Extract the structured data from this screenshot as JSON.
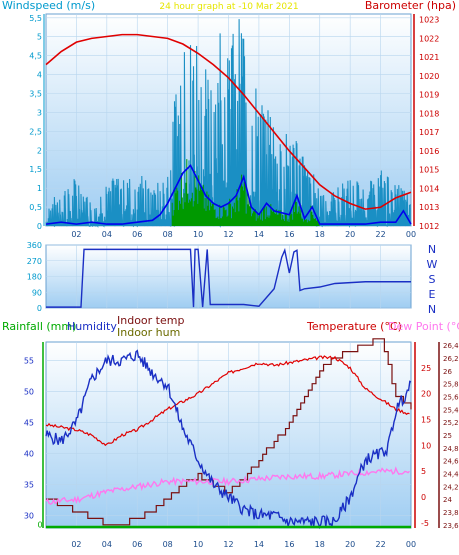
{
  "colors": {
    "windspeed": "#1a8fc4",
    "wind_avg": "#0000ee",
    "gust_green": "#009900",
    "baro": "#e00000",
    "bearing": "#1a2fc4",
    "rain": "#00aa00",
    "humidity": "#1a2fc4",
    "indoor_temp": "#7a1010",
    "indoor_hum": "#6b6b00",
    "temperature": "#e00000",
    "dew": "#ff77ee",
    "axis_cyan": "#009acd",
    "axis_red": "#cc0000"
  },
  "chart_data": [
    {
      "id": "wind-baro",
      "type": "line",
      "title": "24 hour graph at   -10 Mar 2021",
      "left_axis_label": "Windspeed (m/s)",
      "right_axis_label": "Barometer (hpa)",
      "x_ticks": [
        "02",
        "04",
        "06",
        "08",
        "10",
        "12",
        "14",
        "16",
        "18",
        "20",
        "22",
        "00"
      ],
      "y_left_ticks": [
        "0",
        "0,5",
        "1",
        "1,5",
        "2",
        "2,5",
        "3",
        "3,5",
        "4",
        "4,5",
        "5",
        "5,5"
      ],
      "y_right_ticks": [
        "1012",
        "1013",
        "1014",
        "1015",
        "1016",
        "1017",
        "1018",
        "1019",
        "1020",
        "1021",
        "1022",
        "1023"
      ],
      "ylim_left": [
        0,
        5.6
      ],
      "ylim_right": [
        1012,
        1023.3
      ],
      "barometer": {
        "hours": [
          0,
          1,
          2,
          3,
          4,
          5,
          6,
          7,
          8,
          9,
          10,
          11,
          12,
          13,
          14,
          15,
          16,
          17,
          18,
          19,
          20,
          21,
          22,
          23,
          24
        ],
        "values": [
          1020.6,
          1021.3,
          1021.8,
          1022.0,
          1022.1,
          1022.2,
          1022.2,
          1022.1,
          1022.0,
          1021.7,
          1021.2,
          1020.6,
          1019.9,
          1019.0,
          1018.0,
          1017.0,
          1016.0,
          1015.1,
          1014.2,
          1013.6,
          1013.2,
          1012.9,
          1013.0,
          1013.5,
          1013.8
        ]
      },
      "wind_avg": {
        "hours": [
          0,
          1,
          2,
          3,
          4,
          5,
          6,
          7,
          7.5,
          8,
          8.5,
          9,
          9.5,
          10,
          10.5,
          11,
          11.5,
          12,
          12.5,
          13,
          13.5,
          14,
          14.5,
          15,
          16,
          16.5,
          17,
          17.5,
          18,
          19,
          20,
          21,
          22,
          23,
          23.5,
          24
        ],
        "values": [
          0.05,
          0.1,
          0.05,
          0.1,
          0.05,
          0.05,
          0.1,
          0.15,
          0.3,
          0.6,
          1.0,
          1.4,
          1.6,
          1.2,
          0.8,
          0.6,
          0.5,
          0.6,
          0.8,
          1.3,
          0.5,
          0.3,
          0.6,
          0.4,
          0.3,
          0.8,
          0.2,
          0.5,
          0.05,
          0.05,
          0.05,
          0.05,
          0.1,
          0.1,
          0.4,
          0.05
        ]
      },
      "wind_gust_envelope": {
        "hours": [
          0,
          1,
          2,
          3,
          4,
          5,
          6,
          7,
          8,
          8.5,
          9,
          9.5,
          10,
          10.5,
          11,
          11.5,
          12,
          12.5,
          13,
          13.5,
          14,
          15,
          16,
          17,
          18,
          19,
          20,
          21,
          22,
          23,
          24
        ],
        "values": [
          0.5,
          1.0,
          1.3,
          0.6,
          1.1,
          1.5,
          1.5,
          1.0,
          1.5,
          3.5,
          4.5,
          5.5,
          5.4,
          4.5,
          4.2,
          5.5,
          5.0,
          5.5,
          5.5,
          4.0,
          3.5,
          2.8,
          2.5,
          2.0,
          1.0,
          1.0,
          1.3,
          1.1,
          1.5,
          1.3,
          0.8
        ]
      }
    },
    {
      "id": "wind-direction",
      "type": "line",
      "right_axis_label_letters": [
        "N",
        "W",
        "S",
        "E",
        "N"
      ],
      "x_ticks": [],
      "y_ticks": [
        "0",
        "90",
        "180",
        "270",
        "360"
      ],
      "ylim": [
        0,
        360
      ],
      "bearing": {
        "hours": [
          0,
          2,
          2.3,
          2.5,
          8,
          9.5,
          9.7,
          9.8,
          10.0,
          10.3,
          10.6,
          10.8,
          11,
          13,
          14,
          14.5,
          15,
          15.5,
          15.7,
          16,
          16.3,
          16.5,
          16.7,
          17,
          18,
          19,
          20,
          21,
          22,
          24
        ],
        "values": [
          5,
          5,
          5,
          335,
          335,
          335,
          5,
          335,
          335,
          5,
          335,
          20,
          20,
          20,
          10,
          60,
          110,
          290,
          330,
          200,
          320,
          330,
          100,
          110,
          120,
          140,
          145,
          150,
          150,
          150
        ]
      }
    },
    {
      "id": "temp-hum-rain",
      "type": "line",
      "labels": {
        "rainfall": "Rainfall (mm)",
        "humidity": "Humidity",
        "indoor_temp": "Indoor temp",
        "indoor_hum": "Indoor hum",
        "temperature": "Temperature (°C)",
        "dew": "Dew Point (°C)"
      },
      "x_ticks": [
        "02",
        "04",
        "06",
        "08",
        "10",
        "12",
        "14",
        "16",
        "18",
        "20",
        "22",
        "00"
      ],
      "rain_ticks": [
        "0"
      ],
      "humidity_ticks": [
        "30",
        "35",
        "40",
        "45",
        "50",
        "55"
      ],
      "indoor_temp_ticks": [
        "23,6",
        "23,8",
        "24",
        "24,2",
        "24,4",
        "24,6",
        "24,8",
        "25",
        "25,2",
        "25,4",
        "25,6",
        "25,8",
        "26",
        "26,2",
        "26,4"
      ],
      "temperature_ticks": [
        "-5",
        "0",
        "5",
        "10",
        "15",
        "20",
        "25"
      ],
      "ylim_humidity": [
        28,
        58
      ],
      "ylim_temperature": [
        -6,
        30
      ],
      "ylim_indoor_temp": [
        23.55,
        26.45
      ],
      "temperature": {
        "hours": [
          0,
          1,
          2,
          3,
          4,
          5,
          6,
          7,
          8,
          9,
          10,
          11,
          12,
          13,
          14,
          15,
          16,
          17,
          18,
          19,
          20,
          21,
          22,
          23,
          24
        ],
        "values": [
          14,
          13.5,
          13,
          12,
          10,
          12,
          13,
          15,
          17,
          18.5,
          20,
          22,
          24,
          25,
          26,
          25.5,
          26,
          26.5,
          27,
          27,
          25,
          21,
          19,
          17,
          16
        ]
      },
      "dew": {
        "hours": [
          0,
          2,
          4,
          6,
          8,
          10,
          12,
          14,
          16,
          18,
          20,
          22,
          24
        ],
        "values": [
          -1,
          -0.5,
          1,
          2,
          3,
          3,
          3,
          3.5,
          4,
          4,
          4.5,
          5,
          5
        ]
      },
      "humidity": {
        "hours": [
          0,
          1,
          2,
          3,
          4,
          5,
          6,
          7,
          8,
          9,
          10,
          11,
          12,
          13,
          14,
          15,
          16,
          17,
          18,
          19,
          20,
          21,
          22,
          22.5,
          23,
          24
        ],
        "values": [
          43,
          42,
          45,
          52,
          55,
          55,
          56,
          53,
          51,
          44,
          39,
          35,
          33,
          31,
          30,
          30,
          29,
          29,
          29,
          29,
          33,
          39,
          40,
          41,
          47,
          51
        ]
      },
      "indoor_temp": {
        "hours": [
          0,
          1,
          2,
          3,
          4,
          5,
          6,
          7,
          8,
          9,
          10,
          11,
          12,
          13,
          14,
          15,
          16,
          17,
          18,
          19,
          20,
          21,
          22,
          23,
          24
        ],
        "values": [
          24.0,
          23.9,
          23.8,
          23.7,
          23.6,
          23.6,
          23.7,
          23.8,
          24.0,
          24.2,
          24.4,
          24.2,
          24.1,
          24.3,
          24.6,
          24.9,
          25.2,
          25.6,
          26.0,
          26.2,
          26.3,
          26.4,
          26.5,
          25.6,
          25.4
        ]
      },
      "rain": {
        "hours": [
          0,
          24
        ],
        "values": [
          0,
          0
        ]
      }
    }
  ]
}
